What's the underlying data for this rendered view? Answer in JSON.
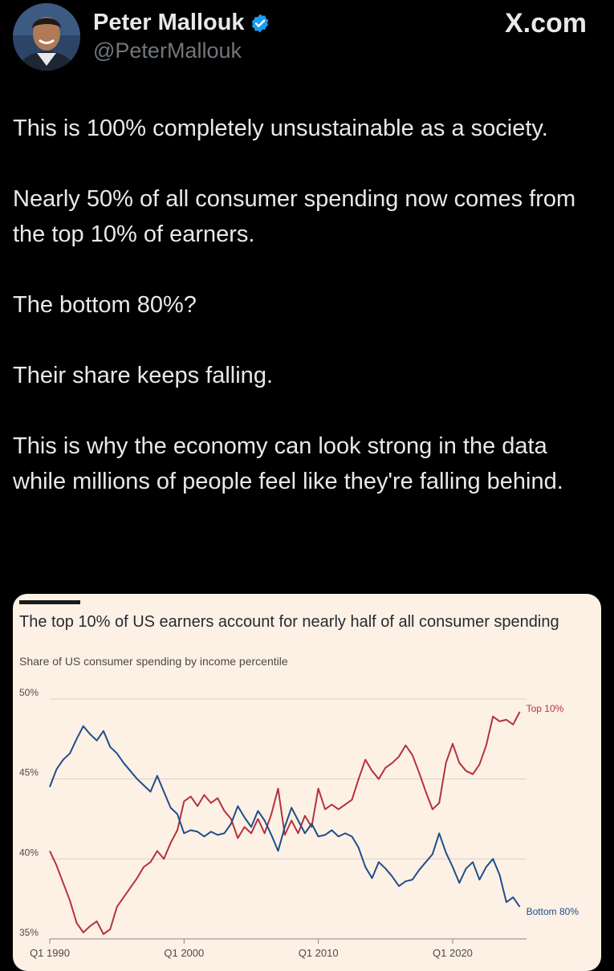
{
  "author": {
    "display_name": "Peter Mallouk",
    "handle": "@PeterMallouk",
    "verified_icon": "verified-badge-icon"
  },
  "site": "X.com",
  "tweet": {
    "paragraphs": [
      "This is 100% completely unsustainable as a society.",
      "Nearly 50% of all consumer spending now comes from the top 10% of earners.",
      "The bottom 80%?",
      "Their share keeps falling.",
      "This is why the economy can look strong in the data while millions of people feel like they're falling behind."
    ]
  },
  "colors": {
    "background": "#000000",
    "text": "#e7e9ea",
    "muted": "#71767b",
    "card_bg": "#fdf1e5",
    "top10": "#b5323c",
    "bottom80": "#1f4e8c",
    "verified": "#1d9bf0"
  },
  "chart_data": {
    "type": "line",
    "title": "The top 10% of US earners account for nearly half of all consumer spending",
    "subtitle": "Share of US consumer spending by income percentile",
    "x_ticks": [
      "Q1 1990",
      "Q1 2000",
      "Q1 2010",
      "Q1 2020"
    ],
    "x_tick_values": [
      1990,
      2000,
      2010,
      2020
    ],
    "y_ticks": [
      "35%",
      "40%",
      "45%",
      "50%"
    ],
    "y_tick_values": [
      35,
      40,
      45,
      50
    ],
    "ylim": [
      35,
      50
    ],
    "xlim": [
      1990,
      2025.5
    ],
    "grid": true,
    "series": [
      {
        "name": "Top 10%",
        "color": "#b5323c",
        "x": [
          1990,
          1990.5,
          1991,
          1991.5,
          1992,
          1992.5,
          1993,
          1993.5,
          1994,
          1994.5,
          1995,
          1995.5,
          1996,
          1996.5,
          1997,
          1997.5,
          1998,
          1998.5,
          1999,
          1999.5,
          2000,
          2000.5,
          2001,
          2001.5,
          2002,
          2002.5,
          2003,
          2003.5,
          2004,
          2004.5,
          2005,
          2005.5,
          2006,
          2006.5,
          2007,
          2007.5,
          2008,
          2008.5,
          2009,
          2009.5,
          2010,
          2010.5,
          2011,
          2011.5,
          2012,
          2012.5,
          2013,
          2013.5,
          2014,
          2014.5,
          2015,
          2015.5,
          2016,
          2016.5,
          2017,
          2017.5,
          2018,
          2018.5,
          2019,
          2019.5,
          2020,
          2020.5,
          2021,
          2021.5,
          2022,
          2022.5,
          2023,
          2023.5,
          2024,
          2024.5,
          2025
        ],
        "values": [
          40.5,
          39.6,
          38.5,
          37.4,
          36.0,
          35.4,
          35.8,
          36.1,
          35.3,
          35.6,
          37.0,
          37.6,
          38.2,
          38.8,
          39.5,
          39.8,
          40.5,
          40.0,
          41.0,
          41.8,
          43.6,
          43.9,
          43.3,
          44.0,
          43.5,
          43.8,
          43.0,
          42.5,
          41.3,
          42.0,
          41.6,
          42.5,
          41.6,
          42.8,
          44.4,
          41.5,
          42.4,
          41.6,
          42.7,
          42.0,
          44.4,
          43.1,
          43.4,
          43.1,
          43.4,
          43.7,
          45.0,
          46.2,
          45.5,
          45.0,
          45.7,
          46.0,
          46.4,
          47.1,
          46.5,
          45.4,
          44.2,
          43.1,
          43.5,
          46.0,
          47.2,
          46.0,
          45.5,
          45.3,
          45.9,
          47.1,
          48.9,
          48.6,
          48.7,
          48.4,
          49.2
        ]
      },
      {
        "name": "Bottom 80%",
        "color": "#1f4e8c",
        "x": [
          1990,
          1990.5,
          1991,
          1991.5,
          1992,
          1992.5,
          1993,
          1993.5,
          1994,
          1994.5,
          1995,
          1995.5,
          1996,
          1996.5,
          1997,
          1997.5,
          1998,
          1998.5,
          1999,
          1999.5,
          2000,
          2000.5,
          2001,
          2001.5,
          2002,
          2002.5,
          2003,
          2003.5,
          2004,
          2004.5,
          2005,
          2005.5,
          2006,
          2006.5,
          2007,
          2007.5,
          2008,
          2008.5,
          2009,
          2009.5,
          2010,
          2010.5,
          2011,
          2011.5,
          2012,
          2012.5,
          2013,
          2013.5,
          2014,
          2014.5,
          2015,
          2015.5,
          2016,
          2016.5,
          2017,
          2017.5,
          2018,
          2018.5,
          2019,
          2019.5,
          2020,
          2020.5,
          2021,
          2021.5,
          2022,
          2022.5,
          2023,
          2023.5,
          2024,
          2024.5,
          2025
        ],
        "values": [
          44.5,
          45.6,
          46.2,
          46.6,
          47.5,
          48.3,
          47.8,
          47.4,
          48.0,
          47.0,
          46.6,
          46.0,
          45.5,
          45.0,
          44.6,
          44.2,
          45.2,
          44.2,
          43.2,
          42.8,
          41.6,
          41.8,
          41.7,
          41.4,
          41.7,
          41.5,
          41.6,
          42.2,
          43.3,
          42.6,
          42.0,
          43.0,
          42.4,
          41.5,
          40.5,
          42.0,
          43.2,
          42.4,
          41.6,
          42.2,
          41.4,
          41.5,
          41.8,
          41.4,
          41.6,
          41.4,
          40.7,
          39.5,
          38.8,
          39.8,
          39.4,
          38.9,
          38.3,
          38.6,
          38.7,
          39.3,
          39.8,
          40.3,
          41.6,
          40.4,
          39.5,
          38.5,
          39.4,
          39.8,
          38.7,
          39.5,
          40.0,
          39.0,
          37.3,
          37.6,
          37.0
        ]
      }
    ]
  }
}
